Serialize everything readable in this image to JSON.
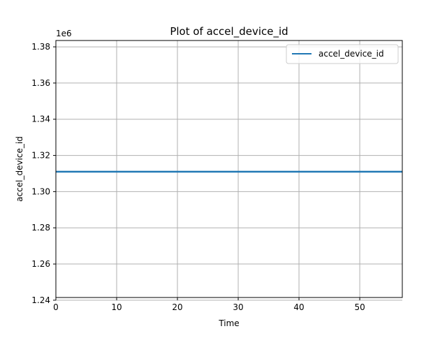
{
  "chart_data": {
    "type": "line",
    "title": "Plot of accel_device_id",
    "xlabel": "Time",
    "ylabel": "accel_device_id",
    "y_offset_label": "1e6",
    "xlim": [
      0,
      57
    ],
    "ylim": [
      1.2415,
      1.3835
    ],
    "xticks": [
      0,
      10,
      20,
      30,
      40,
      50
    ],
    "yticks": [
      1.24,
      1.26,
      1.28,
      1.3,
      1.32,
      1.34,
      1.36,
      1.38
    ],
    "ytick_labels": [
      "1.24",
      "1.26",
      "1.28",
      "1.30",
      "1.32",
      "1.34",
      "1.36",
      "1.38"
    ],
    "grid": true,
    "legend_position": "top-right",
    "series": [
      {
        "name": "accel_device_id",
        "color": "#1f77b4",
        "x": [
          0,
          57
        ],
        "y": [
          1.311,
          1.311
        ]
      }
    ]
  }
}
